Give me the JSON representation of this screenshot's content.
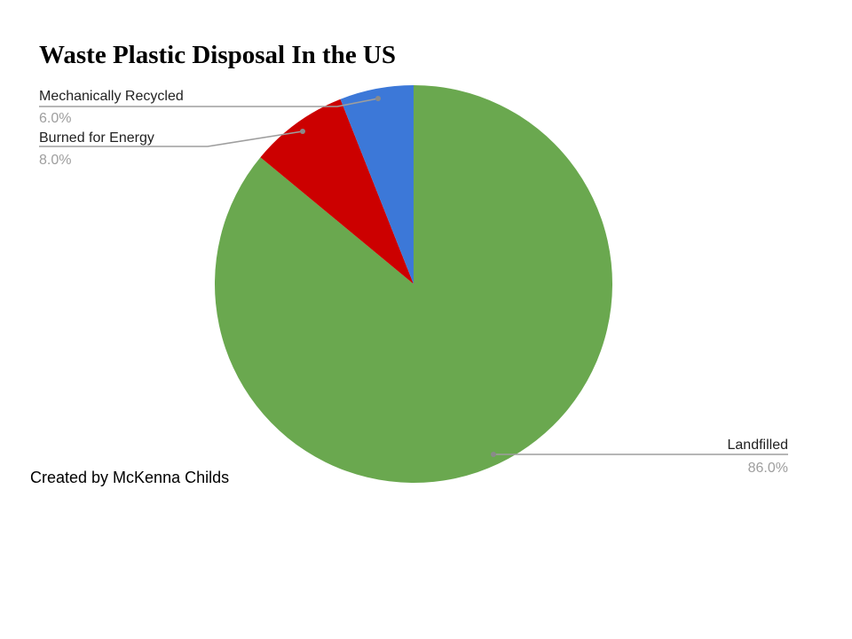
{
  "chart_data": {
    "type": "pie",
    "title": "Waste Plastic Disposal In the US",
    "slices": [
      {
        "label": "Landfilled",
        "value": 86.0,
        "pct_label": "86.0%",
        "color": "#6aa84f"
      },
      {
        "label": "Burned for Energy",
        "value": 8.0,
        "pct_label": "8.0%",
        "color": "#cc0000"
      },
      {
        "label": "Mechanically Recycled",
        "value": 6.0,
        "pct_label": "6.0%",
        "color": "#3c78d8"
      }
    ],
    "legend": "none"
  },
  "footer": {
    "credit": "Created by McKenna Childs"
  }
}
